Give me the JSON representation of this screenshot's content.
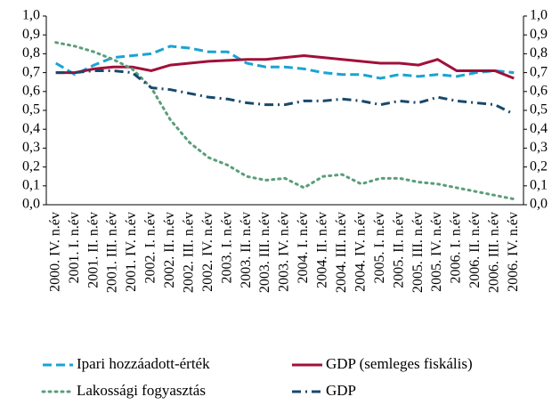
{
  "chart_data": {
    "type": "line",
    "categories": [
      "2000. IV. n.év",
      "2001. I. n.év",
      "2001. II. n.év",
      "2001. III. n.év",
      "2001. IV. n.év",
      "2002. I. n.év",
      "2002. II. n.év",
      "2002. III. n.év",
      "2002. IV. n.év",
      "2003. I. n.év",
      "2003. II. n.év",
      "2003. III. n.év",
      "2003. IV. n.év",
      "2004. I. n.év",
      "2004. II. n.év",
      "2004. III. n.év",
      "2004. IV. n.év",
      "2005. I. n.év",
      "2005. II. n.év",
      "2005. III. n.év",
      "2005. IV. n.év",
      "2006. I. n.év",
      "2006. II. n.év",
      "2006. III. n.év",
      "2006. IV. n.év"
    ],
    "series": [
      {
        "name": "Ipari hozzáadott-érték",
        "color": "#1aa3d4",
        "dash": "dashed",
        "values": [
          0.75,
          0.69,
          0.74,
          0.78,
          0.79,
          0.8,
          0.84,
          0.83,
          0.81,
          0.81,
          0.75,
          0.73,
          0.73,
          0.72,
          0.7,
          0.69,
          0.69,
          0.67,
          0.69,
          0.68,
          0.69,
          0.68,
          0.7,
          0.71,
          0.7
        ]
      },
      {
        "name": "GDP (semleges fiskális)",
        "color": "#a0103a",
        "dash": "solid",
        "values": [
          0.7,
          0.7,
          0.72,
          0.73,
          0.73,
          0.71,
          0.74,
          0.75,
          0.76,
          0.765,
          0.77,
          0.77,
          0.78,
          0.79,
          0.78,
          0.77,
          0.76,
          0.75,
          0.75,
          0.74,
          0.77,
          0.71,
          0.71,
          0.71,
          0.67
        ]
      },
      {
        "name": "Lakossági fogyasztás",
        "color": "#5a9e7a",
        "dash": "dotted",
        "values": [
          0.86,
          0.84,
          0.81,
          0.77,
          0.72,
          0.62,
          0.45,
          0.33,
          0.25,
          0.21,
          0.15,
          0.13,
          0.14,
          0.09,
          0.15,
          0.16,
          0.11,
          0.14,
          0.14,
          0.12,
          0.11,
          0.09,
          0.07,
          0.05,
          0.03
        ]
      },
      {
        "name": "GDP",
        "color": "#17496b",
        "dash": "dashdot",
        "values": [
          0.7,
          0.7,
          0.71,
          0.71,
          0.7,
          0.62,
          0.61,
          0.59,
          0.57,
          0.56,
          0.54,
          0.53,
          0.53,
          0.55,
          0.55,
          0.56,
          0.55,
          0.53,
          0.55,
          0.54,
          0.57,
          0.55,
          0.54,
          0.53,
          0.48
        ]
      }
    ],
    "ylim": [
      0,
      1
    ],
    "yticks": [
      {
        "value": 0,
        "label": "0,0"
      },
      {
        "value": 0.1,
        "label": "0,1"
      },
      {
        "value": 0.2,
        "label": "0,2"
      },
      {
        "value": 0.3,
        "label": "0,3"
      },
      {
        "value": 0.4,
        "label": "0,4"
      },
      {
        "value": 0.5,
        "label": "0,5"
      },
      {
        "value": 0.6,
        "label": "0,6"
      },
      {
        "value": 0.7,
        "label": "0,7"
      },
      {
        "value": 0.8,
        "label": "0,8"
      },
      {
        "value": 0.9,
        "label": "0,9"
      },
      {
        "value": 1,
        "label": "1,0"
      }
    ],
    "y2lim": [
      0,
      1
    ],
    "y2ticks": [
      {
        "value": 0,
        "label": "0,0"
      },
      {
        "value": 0.1,
        "label": "0,1"
      },
      {
        "value": 0.2,
        "label": "0,2"
      },
      {
        "value": 0.3,
        "label": "0,3"
      },
      {
        "value": 0.4,
        "label": "0,4"
      },
      {
        "value": 0.5,
        "label": "0,5"
      },
      {
        "value": 0.6,
        "label": "0,6"
      },
      {
        "value": 0.7,
        "label": "0,7"
      },
      {
        "value": 0.8,
        "label": "0,8"
      },
      {
        "value": 0.9,
        "label": "0,9"
      },
      {
        "value": 1,
        "label": "1,0"
      }
    ]
  }
}
